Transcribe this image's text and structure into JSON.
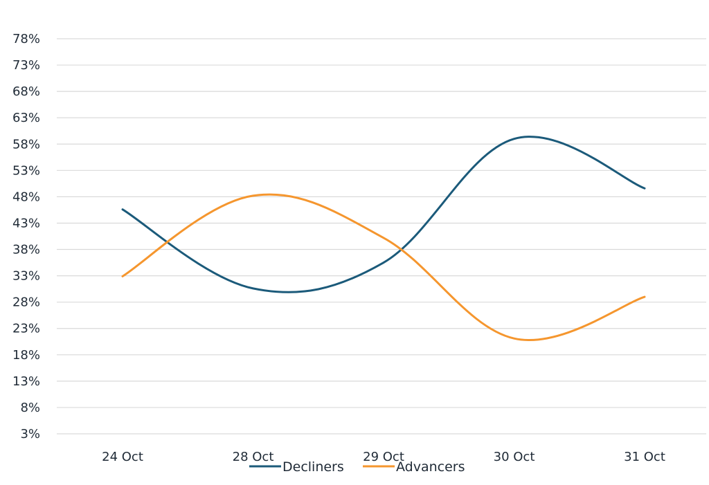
{
  "chart_data": {
    "type": "line",
    "title": "",
    "xlabel": "",
    "ylabel": "",
    "categories": [
      "24 Oct",
      "28 Oct",
      "29 Oct",
      "30 Oct",
      "31 Oct"
    ],
    "y_ticks": [
      "3%",
      "8%",
      "13%",
      "18%",
      "23%",
      "28%",
      "33%",
      "38%",
      "43%",
      "48%",
      "53%",
      "58%",
      "63%",
      "68%",
      "73%",
      "78%"
    ],
    "ylim": [
      3,
      78
    ],
    "y_unit": "%",
    "grid": "horizontal",
    "legend_position": "bottom-center",
    "series": [
      {
        "name": "Decliners",
        "color": "#1b5a7a",
        "values": [
          45.6,
          30.6,
          35.5,
          59.0,
          49.6
        ]
      },
      {
        "name": "Advancers",
        "color": "#f5962e",
        "values": [
          32.9,
          48.2,
          40.2,
          21.1,
          29.0
        ]
      }
    ]
  }
}
